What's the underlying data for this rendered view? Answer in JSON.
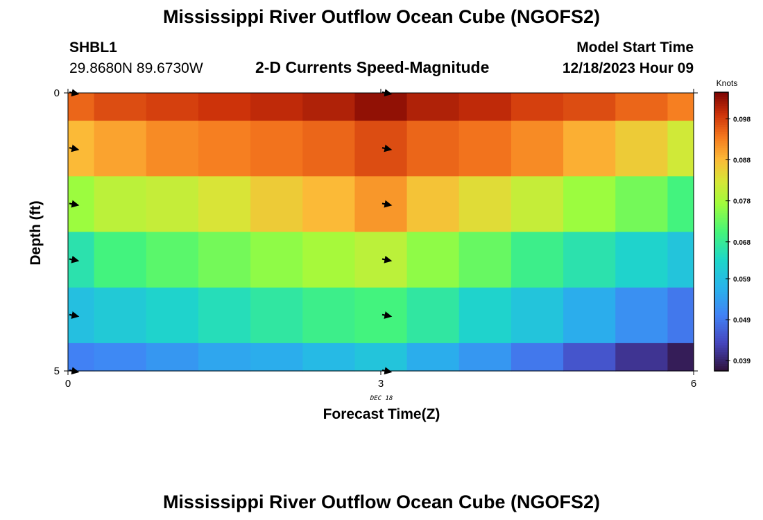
{
  "header": {
    "title": "Mississippi River Outflow Ocean Cube (NGOFS2)",
    "station_id": "SHBL1",
    "coordinates": "29.8680N  89.6730W",
    "subtitle": "2-D Currents Speed-Magnitude",
    "model_start_label": "Model Start Time",
    "model_start_value": "12/18/2023 Hour 09"
  },
  "footer": {
    "title_repeat": "Mississippi River Outflow Ocean Cube (NGOFS2)"
  },
  "chart_data": {
    "type": "heatmap",
    "xlabel": "Forecast Time(Z)",
    "ylabel": "Depth (ft)",
    "date_label": "DEC 18",
    "x_range": [
      0,
      6
    ],
    "y_range": [
      0,
      5
    ],
    "x_ticks": [
      "0",
      "3",
      "6"
    ],
    "y_ticks": [
      "0",
      "5"
    ],
    "colorbar": {
      "label": "Knots",
      "min": 0.0365,
      "max": 0.1045,
      "ticks": [
        0.039,
        0.049,
        0.059,
        0.068,
        0.078,
        0.088,
        0.098
      ],
      "tick_labels": [
        "0.039",
        "0.049",
        "0.059",
        "0.068",
        "0.078",
        "0.088",
        "0.098"
      ]
    },
    "time_boundaries": [
      0,
      0.25,
      0.75,
      1.25,
      1.75,
      2.25,
      2.75,
      3.25,
      3.75,
      4.25,
      4.75,
      5.25,
      5.75,
      6
    ],
    "depth_boundaries": [
      0,
      0.5,
      1.5,
      2.5,
      3.5,
      4.5,
      5
    ],
    "values": [
      [
        0.095,
        0.097,
        0.098,
        0.099,
        0.1,
        0.101,
        0.103,
        0.101,
        0.1,
        0.098,
        0.097,
        0.095,
        0.093
      ],
      [
        0.088,
        0.09,
        0.092,
        0.093,
        0.094,
        0.095,
        0.097,
        0.095,
        0.094,
        0.092,
        0.089,
        0.086,
        0.082
      ],
      [
        0.077,
        0.08,
        0.081,
        0.083,
        0.086,
        0.088,
        0.091,
        0.087,
        0.084,
        0.081,
        0.077,
        0.074,
        0.07
      ],
      [
        0.066,
        0.07,
        0.072,
        0.074,
        0.076,
        0.078,
        0.08,
        0.076,
        0.073,
        0.069,
        0.066,
        0.063,
        0.06
      ],
      [
        0.059,
        0.061,
        0.063,
        0.065,
        0.067,
        0.069,
        0.07,
        0.067,
        0.063,
        0.06,
        0.056,
        0.052,
        0.049
      ],
      [
        0.05,
        0.051,
        0.053,
        0.055,
        0.056,
        0.058,
        0.06,
        0.056,
        0.053,
        0.049,
        0.045,
        0.041,
        0.038
      ]
    ],
    "vector_times": [
      0,
      3
    ],
    "vector_depths": [
      0,
      1,
      2,
      3,
      4,
      5
    ]
  }
}
